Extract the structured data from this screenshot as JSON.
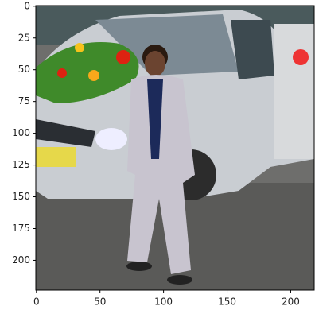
{
  "chart_data": {
    "type": "image",
    "xlim": [
      -0.5,
      218.5
    ],
    "ylim": [
      223.5,
      -0.5
    ],
    "xticks": [
      0,
      50,
      100,
      150,
      200
    ],
    "yticks": [
      0,
      25,
      50,
      75,
      100,
      125,
      150,
      175,
      200
    ]
  }
}
